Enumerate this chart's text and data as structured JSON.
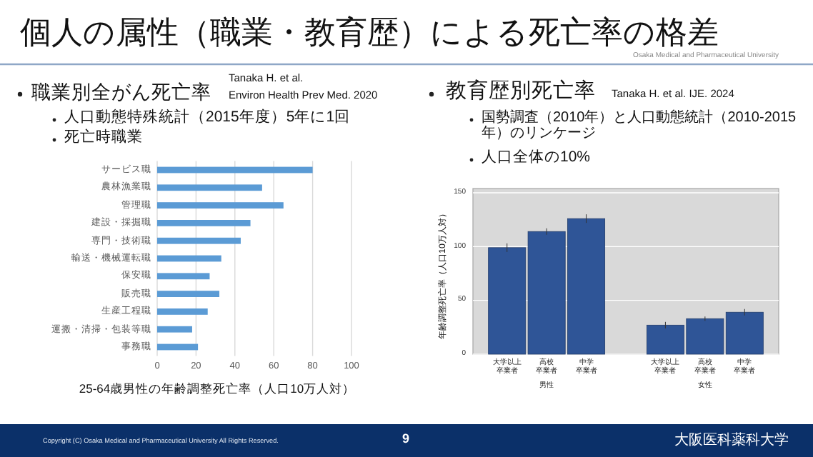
{
  "chart_data": [
    {
      "type": "bar",
      "orientation": "horizontal",
      "title": "個人の属性（職業・教育歴）による死亡率の格差",
      "subtitle": "職業別全がん死亡率",
      "categories": [
        "サービス職",
        "農林漁業職",
        "管理職",
        "建設・採掘職",
        "専門・技術職",
        "輸送・機械運転職",
        "保安職",
        "販売職",
        "生産工程職",
        "運搬・清掃・包装等職",
        "事務職"
      ],
      "values": [
        80,
        54,
        65,
        48,
        43,
        33,
        27,
        32,
        26,
        18,
        21
      ],
      "color": "#5b9bd5",
      "xlim": [
        0,
        100
      ],
      "xticks": [
        0,
        20,
        40,
        60,
        80,
        100
      ],
      "grid": "x",
      "xlabel": "25-64歳男性の年齢調整死亡率（人口10万人対）",
      "annotations": [
        "Tanaka H. et al.",
        "Environ Health Prev Med. 2020",
        "人口動態特殊統計（2015年度）5年に1回",
        "死亡時職業",
        "Copyright (C) Osaka Medical and Pharmaceutical University All Rights Reserved.",
        "9",
        "Osaka Medical and Pharmaceutical University",
        "大阪医科薬科大学"
      ]
    },
    {
      "type": "bar",
      "title": "教育歴別死亡率",
      "categories": [
        "大学以上卒業者",
        "高校卒業者",
        "中学卒業者",
        null,
        "大学以上卒業者",
        "高校卒業者",
        "中学卒業者"
      ],
      "values": [
        99,
        114,
        126,
        null,
        27,
        33,
        39
      ],
      "errors": [
        4,
        3,
        4,
        null,
        3,
        2,
        3
      ],
      "color": "#2f5597",
      "ylim": [
        0,
        150
      ],
      "yticks": [
        0,
        50,
        100,
        150
      ],
      "grid": "y",
      "ylabel": "年齢調整死亡率（人口10万人対）",
      "annotations": [
        "Tanaka H. et al. IJE. 2024",
        "国勢調査（2010年）と人口動態統計（2010-2015年）のリンケージ",
        "人口全体の10%",
        "男性",
        "女性"
      ]
    }
  ]
}
